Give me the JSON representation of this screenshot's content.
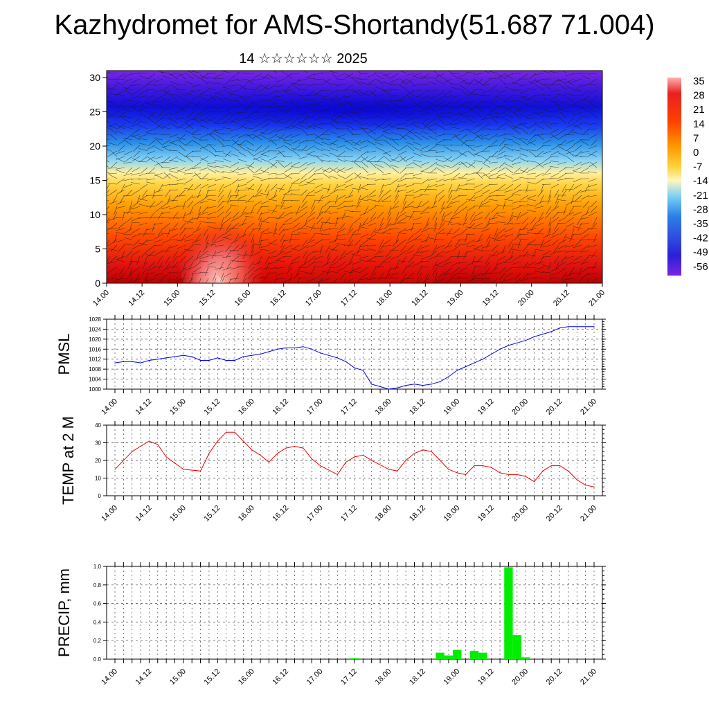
{
  "title": "Kazhydromet for AMS-Shortandy(51.687 71.004)",
  "subtitle": "14 ☆☆☆☆☆☆ 2025",
  "x_tick_labels": [
    "14.00",
    "14.12",
    "15.00",
    "15.12",
    "16.00",
    "16.12",
    "17.00",
    "17.12",
    "18.00",
    "18.12",
    "19.00",
    "19.12",
    "20.00",
    "20.12",
    "21.00"
  ],
  "chart_data": [
    {
      "type": "heatmap",
      "name": "vertical temperature/wind cross-section",
      "ylim": [
        0,
        30
      ],
      "y_ticks": [
        0,
        5,
        10,
        15,
        20,
        25,
        30
      ],
      "colorbar_labels": [
        "35",
        "28",
        "21",
        "14",
        "7",
        "0",
        "-7",
        "-14",
        "-21",
        "-28",
        "-35",
        "-42",
        "-49",
        "-56"
      ],
      "colors": {
        "hot": "#d40000",
        "warm": "#ff8c00",
        "mild": "#ffd740",
        "cool": "#44b4e8",
        "cold": "#1515e6",
        "coldest": "#7020e0"
      },
      "temperature_profile": [
        {
          "level": 0,
          "value": 30
        },
        {
          "level": 5,
          "value": 24
        },
        {
          "level": 10,
          "value": 12
        },
        {
          "level": 14,
          "value": 2
        },
        {
          "level": 16,
          "value": -10
        },
        {
          "level": 18,
          "value": -24
        },
        {
          "level": 21,
          "value": -38
        },
        {
          "level": 25,
          "value": -50
        },
        {
          "level": 30,
          "value": -56
        }
      ]
    },
    {
      "type": "line",
      "ylabel": "PMSL",
      "ylim": [
        1000,
        1028
      ],
      "y_ticks": [
        1000,
        1004,
        1008,
        1012,
        1016,
        1020,
        1024,
        1028
      ],
      "color": "#0000ee",
      "x": [
        0,
        3,
        6,
        9,
        12,
        15,
        18,
        21,
        24,
        27,
        30,
        33,
        36,
        39,
        42,
        45,
        48,
        51,
        54,
        57,
        60,
        63,
        66,
        69,
        72,
        75,
        78,
        81,
        84,
        87,
        90,
        93,
        96,
        99,
        102,
        105,
        108,
        111,
        114,
        117,
        120,
        123,
        126,
        129,
        132,
        135,
        138,
        141,
        144,
        147,
        150,
        153,
        156,
        159,
        162,
        165,
        168
      ],
      "values": [
        1010.5,
        1011,
        1011,
        1010.5,
        1011.5,
        1012,
        1012.5,
        1013,
        1013.5,
        1013,
        1011.5,
        1011.5,
        1012.5,
        1011.5,
        1011.5,
        1013,
        1013.5,
        1014,
        1015,
        1016,
        1016.5,
        1016.5,
        1017,
        1016,
        1014.5,
        1013.5,
        1012.5,
        1011,
        1008.5,
        1007.5,
        1002,
        1001,
        1000,
        1000.5,
        1001.5,
        1002,
        1001.5,
        1002,
        1003,
        1005,
        1007.5,
        1009,
        1010.5,
        1012,
        1014,
        1016,
        1017.5,
        1018.5,
        1019.5,
        1021,
        1022,
        1023,
        1024.5,
        1025,
        1025,
        1025,
        1025
      ]
    },
    {
      "type": "line",
      "ylabel": "TEMP at 2 M",
      "ylim": [
        0,
        40
      ],
      "y_ticks": [
        0,
        10,
        20,
        30,
        40
      ],
      "color": "#ee0000",
      "x": [
        0,
        6,
        12,
        15,
        18,
        24,
        30,
        33,
        36,
        39,
        42,
        48,
        51,
        54,
        57,
        60,
        63,
        66,
        69,
        72,
        78,
        81,
        84,
        87,
        90,
        96,
        99,
        102,
        105,
        108,
        111,
        114,
        117,
        120,
        123,
        126,
        129,
        132,
        135,
        138,
        141,
        144,
        147,
        150,
        153,
        156,
        159,
        162,
        165,
        168
      ],
      "values": [
        15,
        25,
        31,
        29,
        22,
        15,
        14,
        24,
        31,
        36,
        36,
        26,
        23,
        19,
        24,
        27,
        28,
        27,
        21,
        17,
        12,
        19,
        22,
        23,
        20,
        15,
        14,
        20,
        24,
        26,
        25,
        20,
        15,
        13,
        12,
        17,
        17,
        16,
        13,
        12,
        12,
        11,
        8,
        14,
        17,
        17,
        14,
        9,
        6,
        5
      ]
    },
    {
      "type": "bar",
      "ylabel": "PRECIP, mm",
      "ylim": [
        0,
        1.0
      ],
      "y_ticks": [
        "0.0",
        "0.2",
        "0.4",
        "0.6",
        "0.8",
        "1.0"
      ],
      "color": "#00ee00",
      "x": [
        84,
        114,
        117,
        120,
        126,
        129,
        138,
        141,
        144
      ],
      "values": [
        0.01,
        0.07,
        0.04,
        0.1,
        0.09,
        0.07,
        0.99,
        0.26,
        0.02
      ]
    }
  ]
}
